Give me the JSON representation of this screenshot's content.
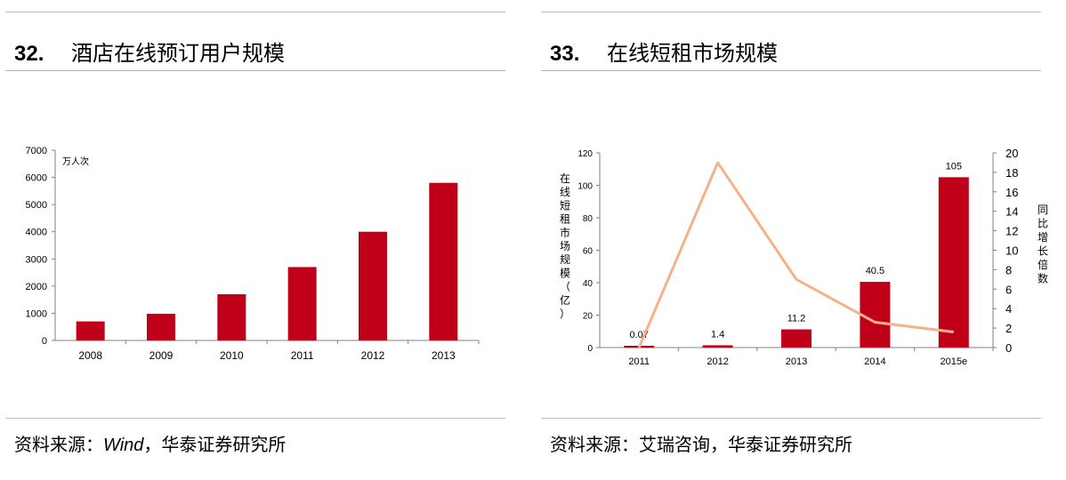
{
  "left_panel": {
    "number": "32.",
    "title": "酒店在线预订用户规模",
    "source_prefix": "资料来源：",
    "source_italic": "Wind",
    "source_suffix": "，华泰证券研究所"
  },
  "right_panel": {
    "number": "33.",
    "title": "在线短租市场规模",
    "source_text": "资料来源：艾瑞咨询，华泰证券研究所"
  },
  "colors": {
    "bar": "#c00018",
    "line": "#f5b28a",
    "heading_rule": "#c0504d"
  },
  "chart_data": [
    {
      "type": "bar",
      "title": "酒店在线预订用户规模",
      "unit": "万人次",
      "categories": [
        "2008",
        "2009",
        "2010",
        "2011",
        "2012",
        "2013"
      ],
      "values": [
        700,
        980,
        1700,
        2700,
        4000,
        5800
      ],
      "ylim": [
        0,
        7000
      ],
      "yticks": [
        "0",
        "1000",
        "2000",
        "3000",
        "4000",
        "5000",
        "6000",
        "7000"
      ],
      "grid": false
    },
    {
      "type": "bar",
      "title": "在线短租市场规模",
      "categories": [
        "2011",
        "2012",
        "2013",
        "2014",
        "2015e"
      ],
      "bar_values": [
        0.07,
        1.4,
        11.2,
        40.5,
        105
      ],
      "bar_labels": [
        "0.07",
        "1.4",
        "11.2",
        "40.5",
        "105"
      ],
      "line_values": [
        0,
        19,
        7,
        2.6,
        1.6
      ],
      "ylabel_left": "在线短租市场规模（亿）",
      "ylabel_right": "同比增长倍数",
      "ylim_left": [
        0,
        120
      ],
      "ylim_right": [
        0,
        20
      ],
      "yticks_left": [
        "0",
        "20",
        "40",
        "60",
        "80",
        "100",
        "120"
      ],
      "yticks_right": [
        "0",
        "2",
        "4",
        "6",
        "8",
        "10",
        "12",
        "14",
        "16",
        "18",
        "20"
      ],
      "grid": false
    }
  ]
}
